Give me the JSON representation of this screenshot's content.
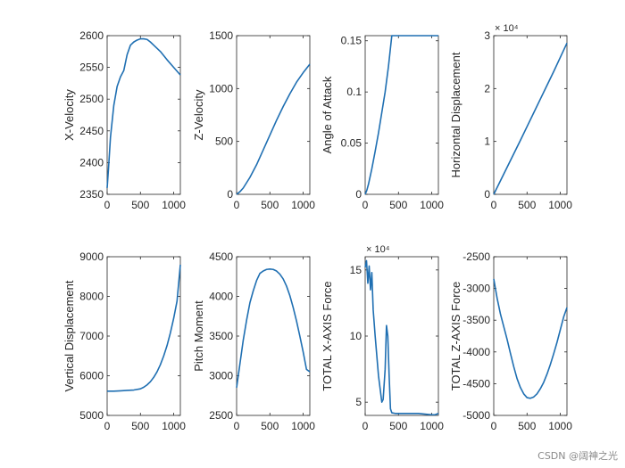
{
  "watermark": "CSDN @阔神之光",
  "style": {
    "line_color": "#1f6fb2",
    "axis_color": "#262626"
  },
  "chart_data": [
    {
      "type": "line",
      "ylabel": "X-Velocity",
      "xlim": [
        0,
        1100
      ],
      "ylim": [
        2350,
        2600
      ],
      "xticks": [
        0,
        500,
        1000
      ],
      "yticks": [
        2350,
        2400,
        2450,
        2500,
        2550,
        2600
      ],
      "x": [
        0,
        20,
        50,
        100,
        150,
        200,
        250,
        300,
        350,
        400,
        450,
        500,
        550,
        600,
        650,
        700,
        800,
        900,
        1000,
        1100
      ],
      "y": [
        2360,
        2390,
        2440,
        2490,
        2520,
        2535,
        2545,
        2570,
        2585,
        2590,
        2593,
        2595,
        2595,
        2594,
        2590,
        2585,
        2575,
        2562,
        2550,
        2538
      ]
    },
    {
      "type": "line",
      "ylabel": "Z-Velocity",
      "xlim": [
        0,
        1100
      ],
      "ylim": [
        0,
        1500
      ],
      "xticks": [
        0,
        500,
        1000
      ],
      "yticks": [
        0,
        500,
        1000,
        1500
      ],
      "x": [
        0,
        50,
        100,
        200,
        300,
        400,
        500,
        600,
        700,
        800,
        900,
        1000,
        1100
      ],
      "y": [
        0,
        25,
        60,
        160,
        280,
        420,
        560,
        700,
        830,
        950,
        1060,
        1150,
        1230
      ]
    },
    {
      "type": "line",
      "ylabel": "Angle of Attack",
      "xlim": [
        0,
        1100
      ],
      "ylim": [
        0,
        0.155
      ],
      "xticks": [
        0,
        500,
        1000
      ],
      "yticks": [
        0,
        0.05,
        0.1,
        0.15
      ],
      "x": [
        0,
        25,
        50,
        100,
        150,
        200,
        250,
        300,
        350,
        400,
        450,
        550,
        650,
        750,
        850,
        950,
        1050,
        1100
      ],
      "y": [
        0,
        0.004,
        0.01,
        0.025,
        0.042,
        0.06,
        0.08,
        0.1,
        0.125,
        0.155,
        0.155,
        0.155,
        0.155,
        0.155,
        0.155,
        0.155,
        0.155,
        0.155
      ]
    },
    {
      "type": "line",
      "ylabel": "Horizontal Displacement",
      "xlim": [
        0,
        1100
      ],
      "ylim": [
        0,
        30000
      ],
      "xticks": [
        0,
        500,
        1000
      ],
      "yticks": [
        0,
        10000,
        20000,
        30000
      ],
      "ytick_labels": [
        "0",
        "1",
        "2",
        "3"
      ],
      "exponent_label": "× 10⁴",
      "x": [
        0,
        100,
        200,
        300,
        400,
        500,
        600,
        700,
        800,
        900,
        1000,
        1100
      ],
      "y": [
        0,
        2550,
        5100,
        7650,
        10200,
        12800,
        15400,
        18000,
        20600,
        23200,
        25900,
        28600
      ]
    },
    {
      "type": "line",
      "ylabel": "Vertical Displacement",
      "xlim": [
        0,
        1100
      ],
      "ylim": [
        5000,
        9000
      ],
      "xticks": [
        0,
        500,
        1000
      ],
      "yticks": [
        5000,
        6000,
        7000,
        8000,
        9000
      ],
      "x": [
        0,
        100,
        200,
        300,
        400,
        500,
        550,
        600,
        650,
        700,
        750,
        800,
        850,
        900,
        950,
        1000,
        1050,
        1100
      ],
      "y": [
        5610,
        5610,
        5620,
        5630,
        5640,
        5670,
        5710,
        5770,
        5850,
        5960,
        6100,
        6280,
        6500,
        6760,
        7080,
        7450,
        7880,
        8800
      ]
    },
    {
      "type": "line",
      "ylabel": "Pitch Moment",
      "xlim": [
        0,
        1100
      ],
      "ylim": [
        2500,
        4500
      ],
      "xticks": [
        0,
        500,
        1000
      ],
      "yticks": [
        2500,
        3000,
        3500,
        4000,
        4500
      ],
      "x": [
        0,
        50,
        100,
        150,
        200,
        250,
        300,
        350,
        400,
        450,
        500,
        550,
        600,
        650,
        700,
        750,
        800,
        850,
        900,
        950,
        1000,
        1050,
        1100
      ],
      "y": [
        2850,
        3150,
        3450,
        3700,
        3920,
        4070,
        4200,
        4290,
        4320,
        4340,
        4345,
        4340,
        4320,
        4280,
        4220,
        4130,
        4010,
        3860,
        3690,
        3500,
        3300,
        3080,
        3050
      ]
    },
    {
      "type": "line",
      "ylabel": "TOTAL X-AXIS Force",
      "xlim": [
        0,
        1100
      ],
      "ylim": [
        40000,
        160000
      ],
      "xticks": [
        0,
        500,
        1000
      ],
      "yticks": [
        50000,
        100000,
        150000
      ],
      "ytick_labels": [
        "5",
        "10",
        "15"
      ],
      "exponent_label": "× 10⁴",
      "x": [
        0,
        20,
        40,
        60,
        80,
        100,
        120,
        150,
        200,
        250,
        270,
        300,
        320,
        340,
        360,
        380,
        400,
        450,
        500,
        600,
        700,
        800,
        900,
        1000,
        1050,
        1100
      ],
      "y": [
        152000,
        157000,
        140000,
        153000,
        135000,
        148000,
        120000,
        100000,
        70000,
        50000,
        52000,
        75000,
        108000,
        100000,
        70000,
        45000,
        42000,
        41500,
        41500,
        41500,
        41500,
        41500,
        41000,
        40500,
        40500,
        41500
      ]
    },
    {
      "type": "line",
      "ylabel": "TOTAL Z-AXIS Force",
      "xlim": [
        0,
        1100
      ],
      "ylim": [
        -5000,
        -2500
      ],
      "xticks": [
        0,
        500,
        1000
      ],
      "yticks": [
        -5000,
        -4500,
        -4000,
        -3500,
        -3000,
        -2500
      ],
      "x": [
        0,
        25,
        50,
        100,
        150,
        200,
        250,
        300,
        350,
        400,
        450,
        500,
        550,
        600,
        650,
        700,
        750,
        800,
        850,
        900,
        950,
        1000,
        1050,
        1100
      ],
      "y": [
        -2850,
        -3000,
        -3150,
        -3400,
        -3600,
        -3800,
        -4020,
        -4230,
        -4420,
        -4560,
        -4660,
        -4720,
        -4730,
        -4710,
        -4660,
        -4580,
        -4480,
        -4350,
        -4200,
        -4030,
        -3850,
        -3650,
        -3450,
        -3300
      ]
    }
  ]
}
